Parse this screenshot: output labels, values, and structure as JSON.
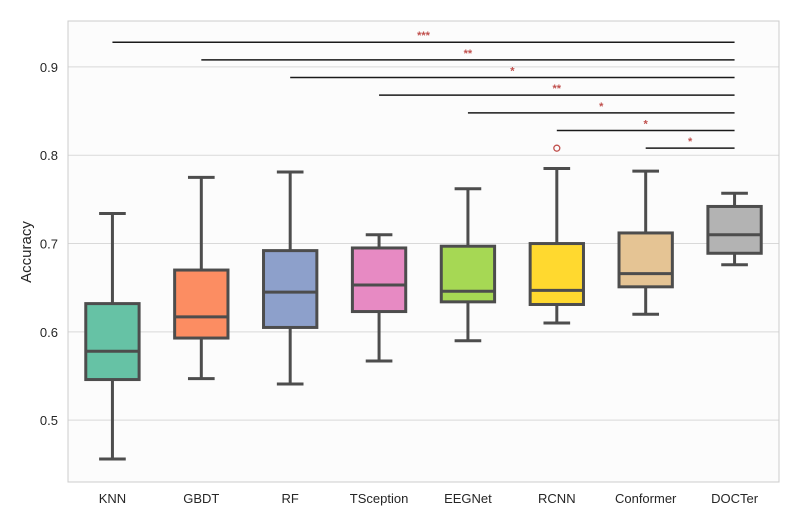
{
  "chart_data": {
    "type": "box",
    "title": "",
    "xlabel": "",
    "ylabel": "Accuracy",
    "ylim": [
      0.43,
      0.952
    ],
    "yticks": [
      0.5,
      0.6,
      0.7,
      0.8,
      0.9
    ],
    "ytick_labels": [
      "0.5",
      "0.6",
      "0.7",
      "0.8",
      "0.9"
    ],
    "grid": "horizontal",
    "categories": [
      "KNN",
      "GBDT",
      "RF",
      "TSception",
      "EEGNet",
      "RCNN",
      "Conformer",
      "DOCTer"
    ],
    "boxes": [
      {
        "name": "KNN",
        "color": "#66c2a5",
        "whisker_low": 0.456,
        "q1": 0.546,
        "median": 0.578,
        "q3": 0.632,
        "whisker_high": 0.734,
        "outliers": []
      },
      {
        "name": "GBDT",
        "color": "#fc8d62",
        "whisker_low": 0.547,
        "q1": 0.593,
        "median": 0.617,
        "q3": 0.67,
        "whisker_high": 0.775,
        "outliers": []
      },
      {
        "name": "RF",
        "color": "#8da0cb",
        "whisker_low": 0.541,
        "q1": 0.605,
        "median": 0.645,
        "q3": 0.692,
        "whisker_high": 0.781,
        "outliers": []
      },
      {
        "name": "TSception",
        "color": "#e78ac3",
        "whisker_low": 0.567,
        "q1": 0.623,
        "median": 0.653,
        "q3": 0.695,
        "whisker_high": 0.71,
        "outliers": []
      },
      {
        "name": "EEGNet",
        "color": "#a6d854",
        "whisker_low": 0.59,
        "q1": 0.634,
        "median": 0.646,
        "q3": 0.697,
        "whisker_high": 0.762,
        "outliers": []
      },
      {
        "name": "RCNN",
        "color": "#ffd92f",
        "whisker_low": 0.61,
        "q1": 0.631,
        "median": 0.647,
        "q3": 0.7,
        "whisker_high": 0.785,
        "outliers": [
          0.808
        ]
      },
      {
        "name": "Conformer",
        "color": "#e5c494",
        "whisker_low": 0.62,
        "q1": 0.651,
        "median": 0.666,
        "q3": 0.712,
        "whisker_high": 0.782,
        "outliers": []
      },
      {
        "name": "DOCTer",
        "color": "#b3b3b3",
        "whisker_low": 0.676,
        "q1": 0.689,
        "median": 0.71,
        "q3": 0.742,
        "whisker_high": 0.757,
        "outliers": []
      }
    ],
    "significance": [
      {
        "from": "KNN",
        "to": "DOCTer",
        "y": 0.928,
        "label": "***"
      },
      {
        "from": "GBDT",
        "to": "DOCTer",
        "y": 0.908,
        "label": "**"
      },
      {
        "from": "RF",
        "to": "DOCTer",
        "y": 0.888,
        "label": "*"
      },
      {
        "from": "TSception",
        "to": "DOCTer",
        "y": 0.868,
        "label": "**"
      },
      {
        "from": "EEGNet",
        "to": "DOCTer",
        "y": 0.848,
        "label": "*"
      },
      {
        "from": "RCNN",
        "to": "DOCTer",
        "y": 0.828,
        "label": "*"
      },
      {
        "from": "Conformer",
        "to": "DOCTer",
        "y": 0.808,
        "label": "*"
      }
    ],
    "colors": {
      "box_edge": "#4d4d4d",
      "grid": "#d9d9d9",
      "frame": "#cccccc",
      "sig_line": "#1a1a1a",
      "sig_text": "#c0504d",
      "outlier": "#c0504d",
      "plot_bg": "#fcfcfc"
    }
  }
}
